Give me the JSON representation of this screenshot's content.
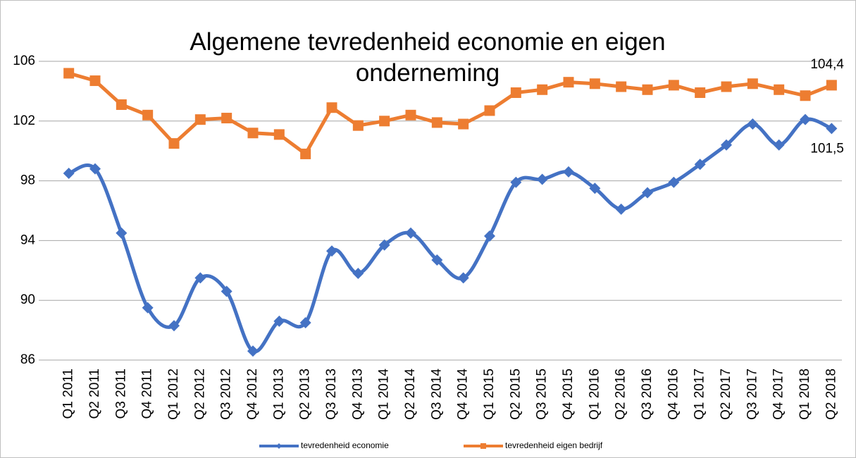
{
  "chart_data": {
    "type": "line",
    "title": "Algemene tevredenheid economie en eigen onderneming",
    "categories": [
      "Q1 2011",
      "Q2 2011",
      "Q3 2011",
      "Q4 2011",
      "Q1 2012",
      "Q2 2012",
      "Q3 2012",
      "Q4 2012",
      "Q1 2013",
      "Q2 2013",
      "Q3 2013",
      "Q4 2013",
      "Q1 2014",
      "Q2 2014",
      "Q3 2014",
      "Q4 2014",
      "Q1 2015",
      "Q2 2015",
      "Q3 2015",
      "Q4 2015",
      "Q1 2016",
      "Q2 2016",
      "Q3 2016",
      "Q4 2016",
      "Q1 2017",
      "Q2 2017",
      "Q3 2017",
      "Q4 2017",
      "Q1 2018",
      "Q2 2018"
    ],
    "series": [
      {
        "name": "tevredenheid economie",
        "color": "#4472c4",
        "marker": "diamond",
        "smooth": true,
        "values": [
          98.5,
          98.8,
          94.5,
          89.5,
          88.3,
          91.5,
          90.6,
          86.6,
          88.6,
          88.5,
          93.3,
          91.8,
          93.7,
          94.5,
          92.7,
          91.5,
          94.3,
          97.9,
          98.1,
          98.6,
          97.5,
          96.1,
          97.2,
          97.9,
          99.1,
          100.4,
          101.8,
          100.4,
          102.1,
          101.5
        ],
        "value_labels": [
          null,
          null,
          null,
          null,
          null,
          null,
          null,
          null,
          null,
          null,
          null,
          null,
          null,
          null,
          null,
          null,
          null,
          null,
          null,
          null,
          null,
          null,
          null,
          null,
          null,
          null,
          null,
          null,
          null,
          "101,5"
        ]
      },
      {
        "name": "tevredenheid eigen bedrijf",
        "color": "#ed7d31",
        "marker": "square",
        "smooth": false,
        "values": [
          105.2,
          104.7,
          103.1,
          102.4,
          100.5,
          102.1,
          102.2,
          101.2,
          101.1,
          99.8,
          102.9,
          101.7,
          102.0,
          102.4,
          101.9,
          101.8,
          102.7,
          103.9,
          104.1,
          104.6,
          104.5,
          104.3,
          104.1,
          104.4,
          103.9,
          104.3,
          104.5,
          104.1,
          103.7,
          104.4
        ],
        "value_labels": [
          null,
          null,
          null,
          null,
          null,
          null,
          null,
          null,
          null,
          null,
          null,
          null,
          null,
          null,
          null,
          null,
          null,
          null,
          null,
          null,
          null,
          null,
          null,
          null,
          null,
          null,
          null,
          null,
          null,
          "104,4"
        ]
      }
    ],
    "ylim": [
      86,
      106
    ],
    "yticks": [
      86,
      90,
      94,
      98,
      102,
      106
    ],
    "grid": true,
    "legend": "bottom"
  }
}
